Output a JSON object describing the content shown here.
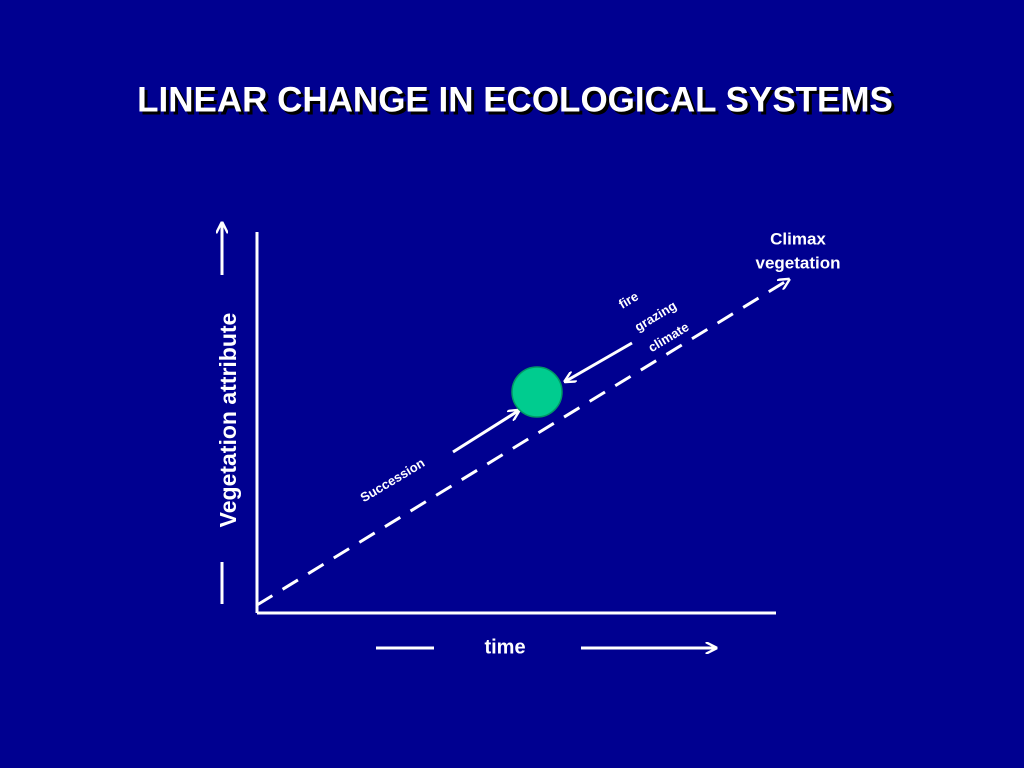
{
  "title": "LINEAR CHANGE IN ECOLOGICAL SYSTEMS",
  "axes": {
    "y_label": "Vegetation attribute",
    "x_label": "time"
  },
  "endpoint": {
    "label": [
      "Climax",
      "vegetation"
    ]
  },
  "forward_arrow": {
    "label": "Succession"
  },
  "backward_arrow": {
    "labels": [
      "fire",
      "grazing",
      "climate"
    ]
  }
}
